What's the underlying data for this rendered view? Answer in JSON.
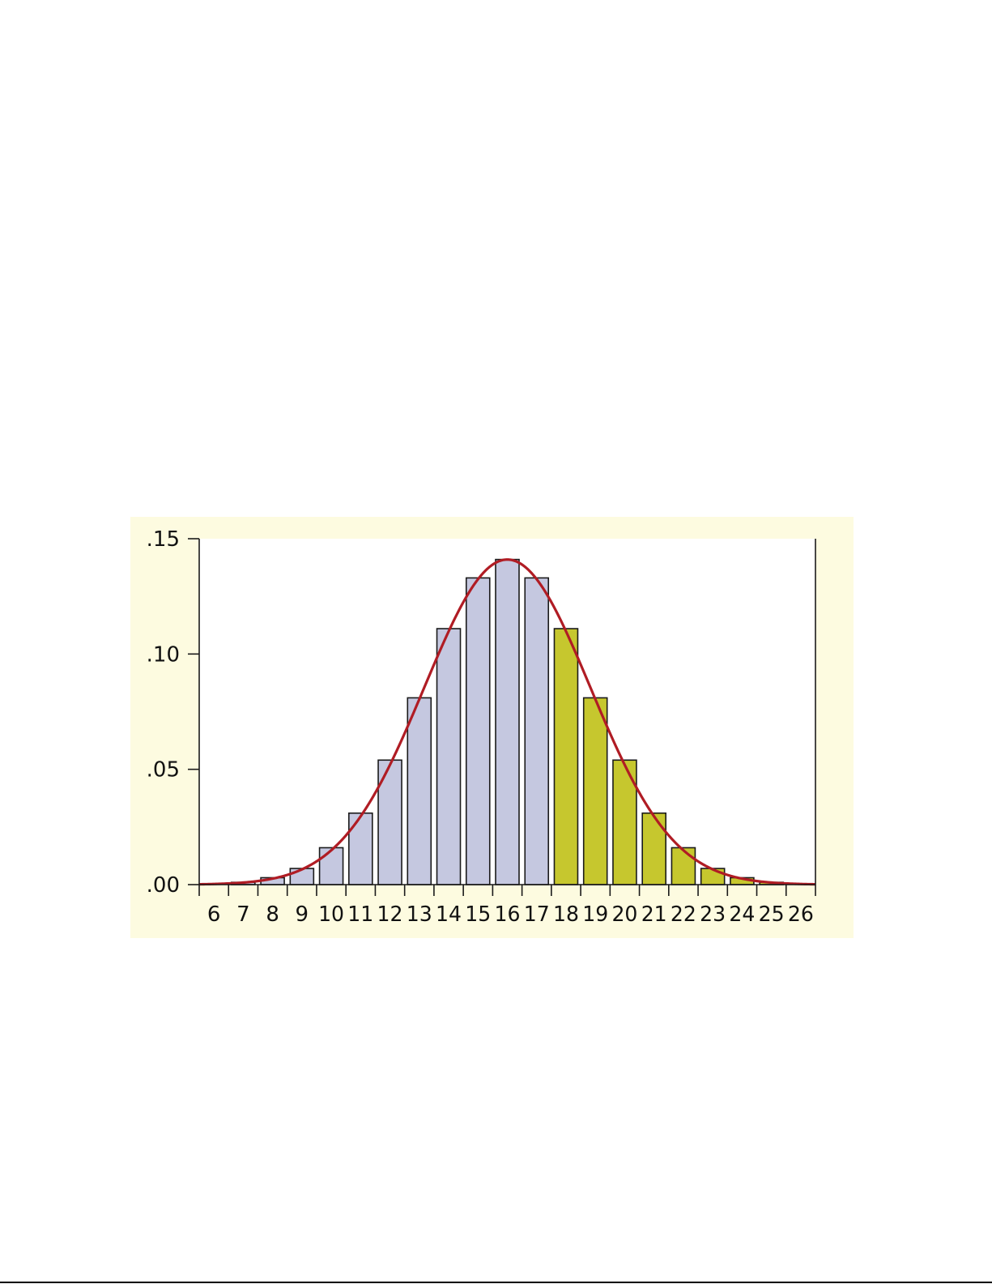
{
  "colors": {
    "panel_background": "#fdfbe0",
    "bar_low": "#c5c8e0",
    "bar_high": "#c6c72e",
    "bar_stroke": "#1a1a1a",
    "curve": "#b01c24",
    "axis": "#1a1a1a"
  },
  "chart_data": {
    "type": "bar",
    "title": "",
    "xlabel": "",
    "ylabel": "",
    "ylim": [
      0,
      0.15
    ],
    "xlim": [
      5.5,
      26.5
    ],
    "y_ticks": [
      0.0,
      0.05,
      0.1,
      0.15
    ],
    "y_tick_labels": [
      ".00",
      ".05",
      ".10",
      ".15"
    ],
    "categories": [
      "6",
      "7",
      "8",
      "9",
      "10",
      "11",
      "12",
      "13",
      "14",
      "15",
      "16",
      "17",
      "18",
      "19",
      "20",
      "21",
      "22",
      "23",
      "24",
      "25",
      "26"
    ],
    "values": [
      0.0,
      0.001,
      0.003,
      0.007,
      0.016,
      0.031,
      0.054,
      0.081,
      0.111,
      0.133,
      0.141,
      0.133,
      0.111,
      0.081,
      0.054,
      0.031,
      0.016,
      0.007,
      0.003,
      0.001,
      0.0
    ],
    "highlight_from": "18",
    "grid": false,
    "legend": "none",
    "curve": {
      "type": "normal-density",
      "mean": 16,
      "sd": 2.83
    }
  }
}
